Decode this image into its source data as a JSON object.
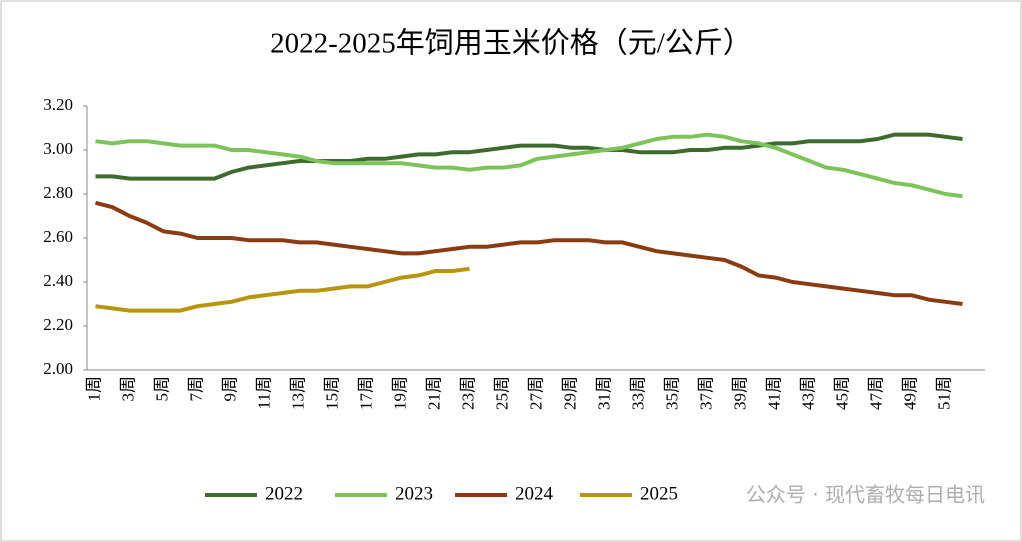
{
  "chart_data": {
    "type": "line",
    "title": "2022-2025年饲用玉米价格（元/公斤）",
    "watermark": "公众号 · 现代畜牧每日电讯",
    "categories": [
      "1周",
      null,
      "3周",
      null,
      "5周",
      null,
      "7周",
      null,
      "9周",
      null,
      "11周",
      null,
      "13周",
      null,
      "15周",
      null,
      "17周",
      null,
      "19周",
      null,
      "21周",
      null,
      "23周",
      null,
      "25周",
      null,
      "27周",
      null,
      "29周",
      null,
      "31周",
      null,
      "33周",
      null,
      "35周",
      null,
      "37周",
      null,
      "39周",
      null,
      "41周",
      null,
      "43周",
      null,
      "45周",
      null,
      "47周",
      null,
      "49周",
      null,
      "51周",
      null
    ],
    "ylim": [
      2.0,
      3.2
    ],
    "yticks": [
      {
        "value": 2.0,
        "label": "2.00"
      },
      {
        "value": 2.2,
        "label": "2.20"
      },
      {
        "value": 2.4,
        "label": "2.40"
      },
      {
        "value": 2.6,
        "label": "2.60"
      },
      {
        "value": 2.8,
        "label": "2.80"
      },
      {
        "value": 3.0,
        "label": "3.00"
      },
      {
        "value": 3.2,
        "label": "3.20"
      }
    ],
    "legend": "bottom",
    "series": [
      {
        "name": "2022",
        "color": "#3f6a2e",
        "values": [
          2.88,
          2.88,
          2.87,
          2.87,
          2.87,
          2.87,
          2.87,
          2.87,
          2.9,
          2.92,
          2.93,
          2.94,
          2.95,
          2.95,
          2.95,
          2.95,
          2.96,
          2.96,
          2.97,
          2.98,
          2.98,
          2.99,
          2.99,
          3.0,
          3.01,
          3.02,
          3.02,
          3.02,
          3.01,
          3.01,
          3.0,
          3.0,
          2.99,
          2.99,
          2.99,
          3.0,
          3.0,
          3.01,
          3.01,
          3.02,
          3.03,
          3.03,
          3.04,
          3.04,
          3.04,
          3.04,
          3.05,
          3.07,
          3.07,
          3.07,
          3.06,
          3.05
        ]
      },
      {
        "name": "2023",
        "color": "#7cc35a",
        "values": [
          3.04,
          3.03,
          3.04,
          3.04,
          3.03,
          3.02,
          3.02,
          3.02,
          3.0,
          3.0,
          2.99,
          2.98,
          2.97,
          2.95,
          2.94,
          2.94,
          2.94,
          2.94,
          2.94,
          2.93,
          2.92,
          2.92,
          2.91,
          2.92,
          2.92,
          2.93,
          2.96,
          2.97,
          2.98,
          2.99,
          3.0,
          3.01,
          3.03,
          3.05,
          3.06,
          3.06,
          3.07,
          3.06,
          3.04,
          3.03,
          3.01,
          2.98,
          2.95,
          2.92,
          2.91,
          2.89,
          2.87,
          2.85,
          2.84,
          2.82,
          2.8,
          2.79
        ]
      },
      {
        "name": "2024",
        "color": "#8a3b12",
        "values": [
          2.76,
          2.74,
          2.7,
          2.67,
          2.63,
          2.62,
          2.6,
          2.6,
          2.6,
          2.59,
          2.59,
          2.59,
          2.58,
          2.58,
          2.57,
          2.56,
          2.55,
          2.54,
          2.53,
          2.53,
          2.54,
          2.55,
          2.56,
          2.56,
          2.57,
          2.58,
          2.58,
          2.59,
          2.59,
          2.59,
          2.58,
          2.58,
          2.56,
          2.54,
          2.53,
          2.52,
          2.51,
          2.5,
          2.47,
          2.43,
          2.42,
          2.4,
          2.39,
          2.38,
          2.37,
          2.36,
          2.35,
          2.34,
          2.34,
          2.32,
          2.31,
          2.3
        ]
      },
      {
        "name": "2025",
        "color": "#b8950e",
        "values": [
          2.29,
          2.28,
          2.27,
          2.27,
          2.27,
          2.27,
          2.29,
          2.3,
          2.31,
          2.33,
          2.34,
          2.35,
          2.36,
          2.36,
          2.37,
          2.38,
          2.38,
          2.4,
          2.42,
          2.43,
          2.45,
          2.45,
          2.46,
          null,
          null,
          null,
          null,
          null,
          null,
          null,
          null,
          null,
          null,
          null,
          null,
          null,
          null,
          null,
          null,
          null,
          null,
          null,
          null,
          null,
          null,
          null,
          null,
          null,
          null,
          null,
          null,
          null
        ]
      }
    ]
  }
}
